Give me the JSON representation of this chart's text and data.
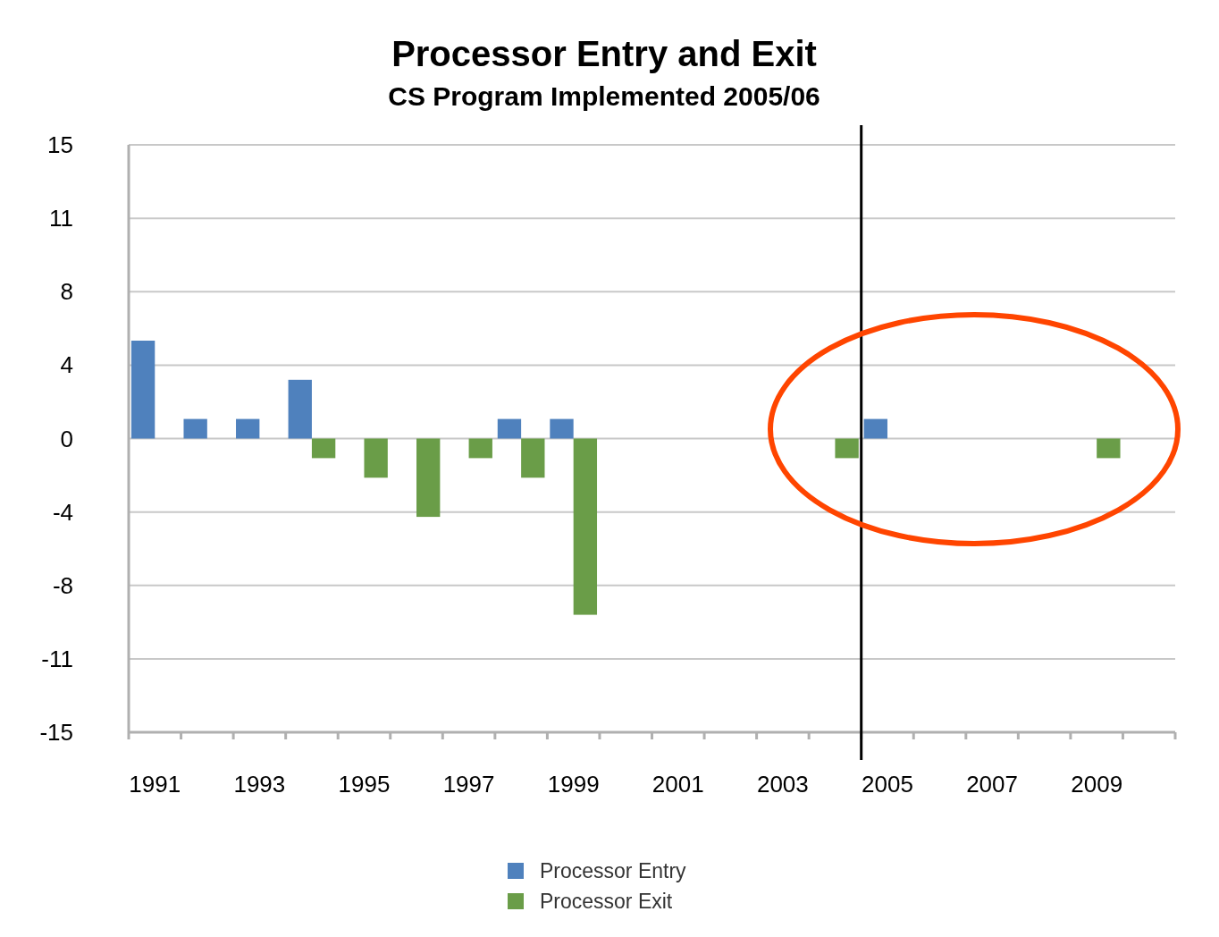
{
  "chart_data": {
    "type": "bar",
    "title": "Processor Entry and Exit",
    "subtitle": "CS Program Implemented 2005/06",
    "categories": [
      "1991",
      null,
      "1993",
      null,
      "1995",
      null,
      "1997",
      null,
      "1999",
      null,
      "2001",
      null,
      "2003",
      null,
      "2005",
      null,
      "2007",
      null,
      "2009",
      null
    ],
    "series": [
      {
        "name": "Processor Entry",
        "color": "#4f81bd",
        "values": [
          5,
          1,
          1,
          3,
          null,
          null,
          null,
          1,
          1,
          null,
          null,
          null,
          null,
          null,
          1,
          null,
          null,
          null,
          null,
          null
        ]
      },
      {
        "name": "Processor Exit",
        "color": "#6a9d48",
        "values": [
          null,
          null,
          null,
          -1,
          -2,
          -4,
          -1,
          -2,
          -9,
          null,
          null,
          null,
          null,
          -1,
          null,
          null,
          null,
          null,
          -1,
          null
        ]
      }
    ],
    "ylim": [
      -15,
      15
    ],
    "yticks": [
      {
        "value": -15,
        "label": "-15"
      },
      {
        "value": -11.25,
        "label": "-11"
      },
      {
        "value": -7.5,
        "label": "-8"
      },
      {
        "value": -3.75,
        "label": "-4"
      },
      0,
      {
        "value": 3.75,
        "label": "4"
      },
      {
        "value": 7.5,
        "label": "8"
      },
      {
        "value": 11.25,
        "label": "11"
      },
      15
    ],
    "grid": "y",
    "legend": "bottom",
    "ref_lines": [
      {
        "axis": "x",
        "value": "2005",
        "color": "#000000"
      }
    ]
  }
}
